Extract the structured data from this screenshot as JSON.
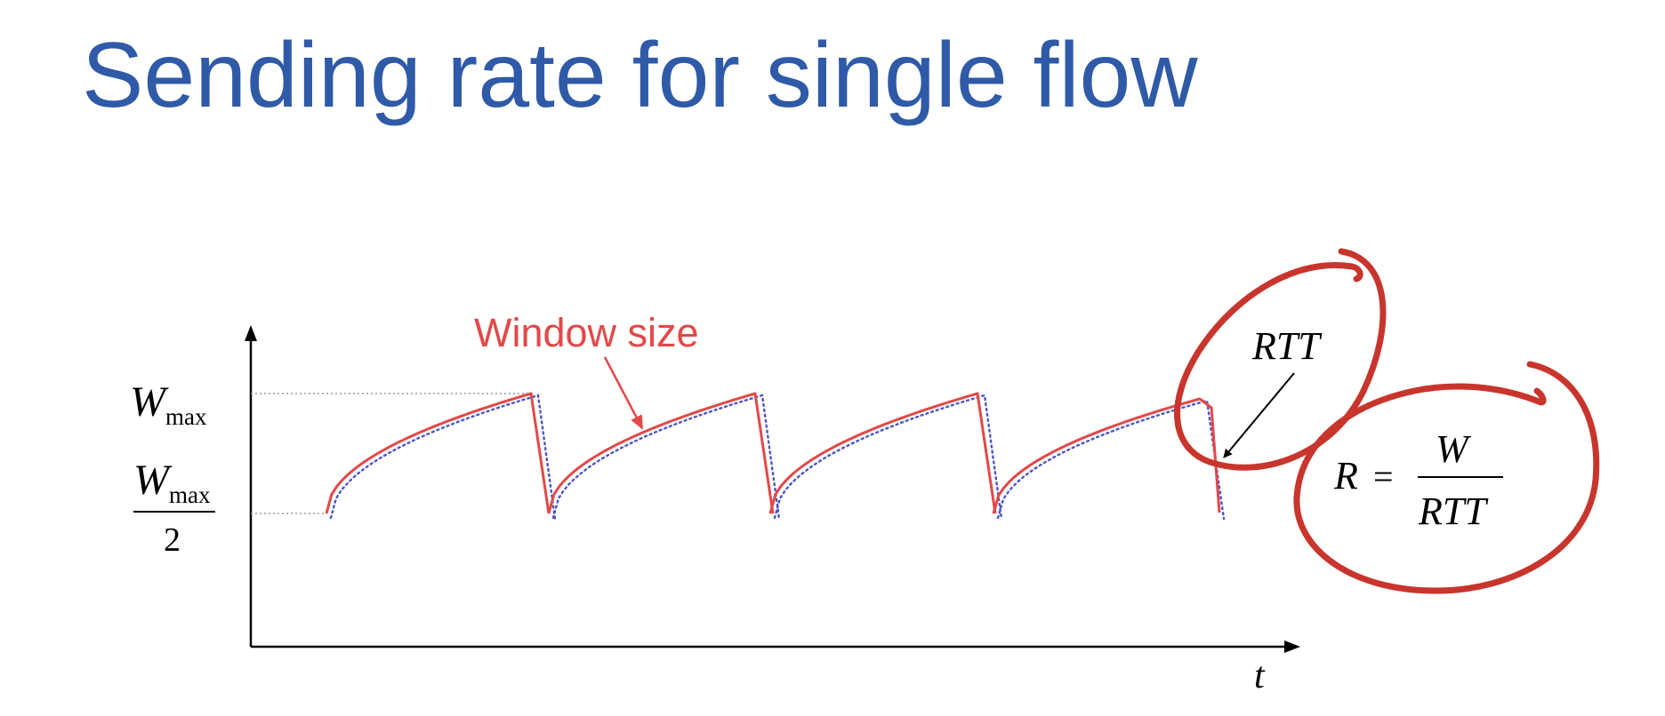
{
  "slide": {
    "title": "Sending rate for single flow"
  },
  "diagram": {
    "y_labels": {
      "wmax_letter": "W",
      "wmax_sub": "max",
      "half_letter": "W",
      "half_sub": "max",
      "half_den": "2"
    },
    "x_label": "t",
    "window_label": "Window size",
    "rtt_label": "RTT",
    "formula": {
      "lhs": "R",
      "eq": "=",
      "numerator": "W",
      "denominator": "RTT"
    },
    "colors": {
      "title": "#2f5aa7",
      "window_curve": "#e34848",
      "rate_curve": "#4a55c8",
      "annotation_ink": "#c8352c",
      "axis": "#000000",
      "guide": "#9a9a9a"
    },
    "sawtooth": {
      "low_level": "Wmax/2",
      "high_level": "Wmax",
      "cycles": 4,
      "last_cycle_partial": true
    }
  }
}
